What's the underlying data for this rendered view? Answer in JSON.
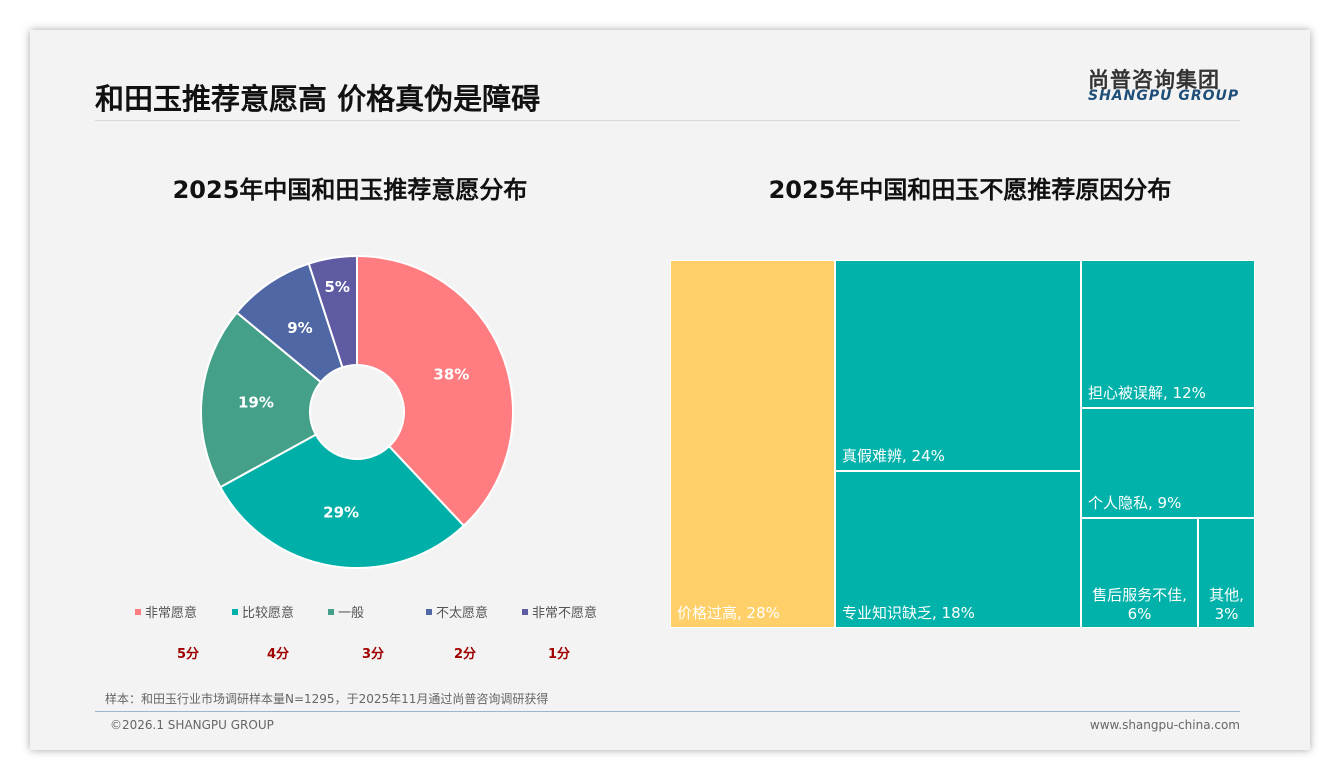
{
  "header": {
    "title": "和田玉推荐意愿高 价格真伪是障碍",
    "logo_cn": "尚普咨询集团",
    "logo_en": "SHANGPU GROUP"
  },
  "chart_data": [
    {
      "type": "pie",
      "title": "2025年中国和田玉推荐意愿分布",
      "categories": [
        "非常愿意",
        "比较愿意",
        "一般",
        "不太愿意",
        "非常不愿意"
      ],
      "values": [
        38,
        29,
        19,
        9,
        5
      ],
      "labels": [
        "38%",
        "29%",
        "19%",
        "9%",
        "5%"
      ],
      "scores": [
        "5分",
        "4分",
        "3分",
        "2分",
        "1分"
      ],
      "colors": [
        "#FF7C80",
        "#00B0A8",
        "#45A08A",
        "#4F67A5",
        "#5F5BA3"
      ],
      "legend": "bottom"
    },
    {
      "type": "treemap",
      "title": "2025年中国和田玉不愿推荐原因分布",
      "categories": [
        "价格过高",
        "真假难辨",
        "专业知识缺乏",
        "担心被误解",
        "个人隐私",
        "售后服务不佳",
        "其他"
      ],
      "values": [
        28,
        24,
        18,
        12,
        9,
        6,
        3
      ],
      "labels": [
        "价格过高, 28%",
        "真假难辨, 24%",
        "专业知识缺乏, 18%",
        "担心被误解, 12%",
        "个人隐私, 9%",
        "售后服务不佳, 6%",
        "其他, 3%"
      ],
      "colors": [
        "#FFD06A",
        "#00B2A9"
      ]
    }
  ],
  "footer": {
    "note": "样本：和田玉行业市场调研样本量N=1295，于2025年11月通过尚普咨询调研获得",
    "copyright": "©2026.1 SHANGPU GROUP",
    "url": "www.shangpu-china.com"
  }
}
